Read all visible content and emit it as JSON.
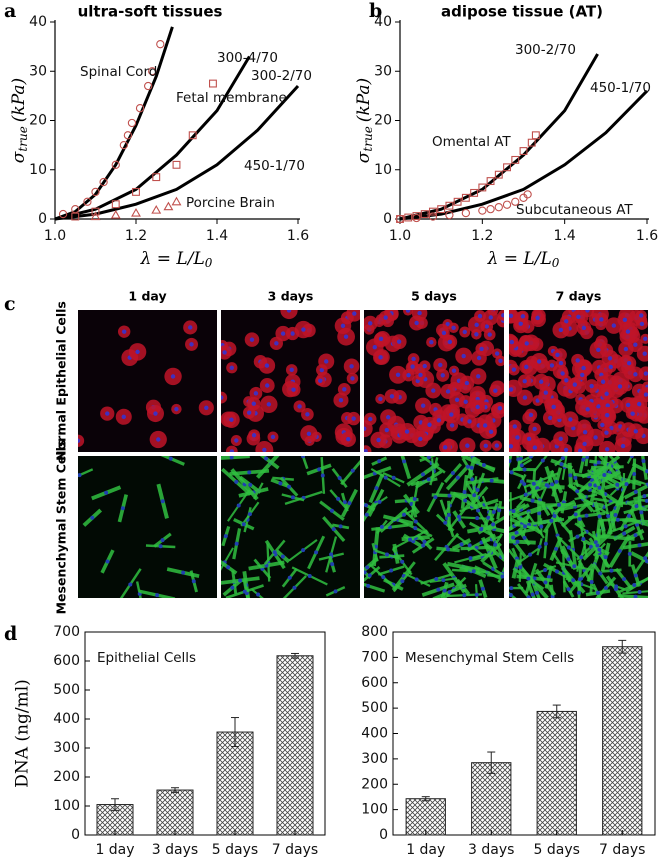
{
  "chart_data": [
    {
      "type": "line",
      "panel": "a",
      "title": "ultra-soft tissues",
      "ylabel": {
        "symbol": "σ",
        "sub": "true",
        "unit": "(kPa)"
      },
      "xlabel": {
        "main": "λ = L/L",
        "sub": "0"
      },
      "xlim": [
        1.0,
        1.6
      ],
      "ylim": [
        0,
        40
      ],
      "xticks": [
        {
          "value": 1,
          "label": "1.0"
        },
        {
          "value": 1.2,
          "label": "1.2"
        },
        {
          "value": 1.4,
          "label": "1.4"
        },
        {
          "value": 1.6,
          "label": "1.6"
        }
      ],
      "yticks": [
        0,
        10,
        20,
        30,
        40
      ],
      "series": [
        {
          "name": "300-4/70",
          "kind": "line",
          "color": "#000000",
          "x": [
            1.0,
            1.05,
            1.1,
            1.15,
            1.2,
            1.25,
            1.29
          ],
          "y": [
            0,
            1.5,
            5,
            11,
            19,
            29,
            39
          ]
        },
        {
          "name": "300-2/70",
          "kind": "line",
          "color": "#000000",
          "x": [
            1.0,
            1.1,
            1.2,
            1.3,
            1.4,
            1.48
          ],
          "y": [
            0,
            2,
            6,
            13,
            22,
            33
          ]
        },
        {
          "name": "450-1/70",
          "kind": "line",
          "color": "#000000",
          "x": [
            1.0,
            1.1,
            1.2,
            1.3,
            1.4,
            1.5,
            1.6
          ],
          "y": [
            0,
            1,
            3,
            6,
            11,
            18,
            27
          ]
        },
        {
          "name": "Spinal Cord",
          "kind": "scatter",
          "marker": "circle",
          "color": "#c0504d",
          "x": [
            1.02,
            1.05,
            1.08,
            1.1,
            1.12,
            1.15,
            1.17,
            1.18,
            1.19,
            1.21,
            1.23,
            1.24,
            1.26
          ],
          "y": [
            1,
            2,
            3.5,
            5.5,
            7.5,
            11,
            15,
            17,
            19.5,
            22.5,
            27,
            30,
            35.5
          ]
        },
        {
          "name": "Fetal membrane",
          "kind": "scatter",
          "marker": "square",
          "color": "#c0504d",
          "x": [
            1.05,
            1.1,
            1.15,
            1.2,
            1.25,
            1.3,
            1.34,
            1.39
          ],
          "y": [
            0.5,
            1.5,
            3,
            5.5,
            8.5,
            11,
            17,
            27.5
          ]
        },
        {
          "name": "Porcine Brain",
          "kind": "scatter",
          "marker": "triangle",
          "color": "#c0504d",
          "x": [
            1.1,
            1.15,
            1.2,
            1.25,
            1.28,
            1.3
          ],
          "y": [
            0.5,
            0.8,
            1.2,
            1.8,
            2.5,
            3.5
          ]
        }
      ]
    },
    {
      "type": "line",
      "panel": "b",
      "title": "adipose tissue (AT)",
      "ylabel": {
        "symbol": "σ",
        "sub": "true",
        "unit": "(kPa)"
      },
      "xlabel": {
        "main": "λ = L/L",
        "sub": "0"
      },
      "xlim": [
        1.0,
        1.6
      ],
      "ylim": [
        0,
        40
      ],
      "xticks": [
        {
          "value": 1,
          "label": "1.0"
        },
        {
          "value": 1.2,
          "label": "1.2"
        },
        {
          "value": 1.4,
          "label": "1.4"
        },
        {
          "value": 1.6,
          "label": "1.6"
        }
      ],
      "yticks": [
        0,
        10,
        20,
        30,
        40
      ],
      "series": [
        {
          "name": "300-2/70",
          "kind": "line",
          "color": "#000000",
          "x": [
            1.0,
            1.1,
            1.2,
            1.3,
            1.4,
            1.48
          ],
          "y": [
            0,
            2,
            6,
            13,
            22,
            33.5
          ]
        },
        {
          "name": "450-1/70",
          "kind": "line",
          "color": "#000000",
          "x": [
            1.0,
            1.1,
            1.2,
            1.3,
            1.4,
            1.5,
            1.6
          ],
          "y": [
            0,
            1,
            3,
            6,
            11,
            17.5,
            26
          ]
        },
        {
          "name": "Omental AT",
          "kind": "scatter",
          "marker": "square",
          "color": "#c0504d",
          "x": [
            1.0,
            1.02,
            1.04,
            1.06,
            1.08,
            1.1,
            1.12,
            1.14,
            1.16,
            1.18,
            1.2,
            1.22,
            1.24,
            1.26,
            1.28,
            1.3,
            1.32,
            1.33
          ],
          "y": [
            0,
            0.3,
            0.6,
            1,
            1.5,
            2,
            2.7,
            3.5,
            4.3,
            5.3,
            6.4,
            7.7,
            9,
            10.5,
            12,
            13.8,
            15.5,
            17
          ]
        },
        {
          "name": "Subcutaneous AT",
          "kind": "scatter",
          "marker": "circle",
          "color": "#c0504d",
          "x": [
            1.0,
            1.04,
            1.08,
            1.12,
            1.16,
            1.2,
            1.22,
            1.24,
            1.26,
            1.28,
            1.3,
            1.31
          ],
          "y": [
            0,
            0.2,
            0.5,
            0.8,
            1.2,
            1.7,
            2,
            2.4,
            2.9,
            3.5,
            4.3,
            5
          ]
        }
      ]
    },
    {
      "type": "bar",
      "panel": "d",
      "ylabel": "DNA (ng/ml)",
      "label": "Epithelial Cells",
      "color": "#444444",
      "categories": [
        "1 day",
        "3 days",
        "5 days",
        "7 days"
      ],
      "values": [
        105,
        155,
        355,
        618
      ],
      "errors": [
        20,
        8,
        50,
        8
      ],
      "ylim": [
        0,
        700
      ],
      "yticks": [
        0,
        100,
        200,
        300,
        400,
        500,
        600,
        700
      ]
    },
    {
      "type": "bar",
      "label": "Mesenchymal Stem Cells",
      "color": "#444444",
      "categories": [
        "1 day",
        "3 days",
        "5 days",
        "7 days"
      ],
      "values": [
        143,
        285,
        487,
        742
      ],
      "errors": [
        8,
        42,
        25,
        25
      ],
      "ylim": [
        0,
        800
      ],
      "yticks": [
        0,
        100,
        200,
        300,
        400,
        500,
        600,
        700,
        800
      ]
    }
  ],
  "image_grid": {
    "panel": "c",
    "columns": [
      "1 day",
      "3 days",
      "5 days",
      "7 days"
    ],
    "rows": [
      "Normal Epithelial Cells",
      "Mesenchymal Stem Cells"
    ]
  }
}
